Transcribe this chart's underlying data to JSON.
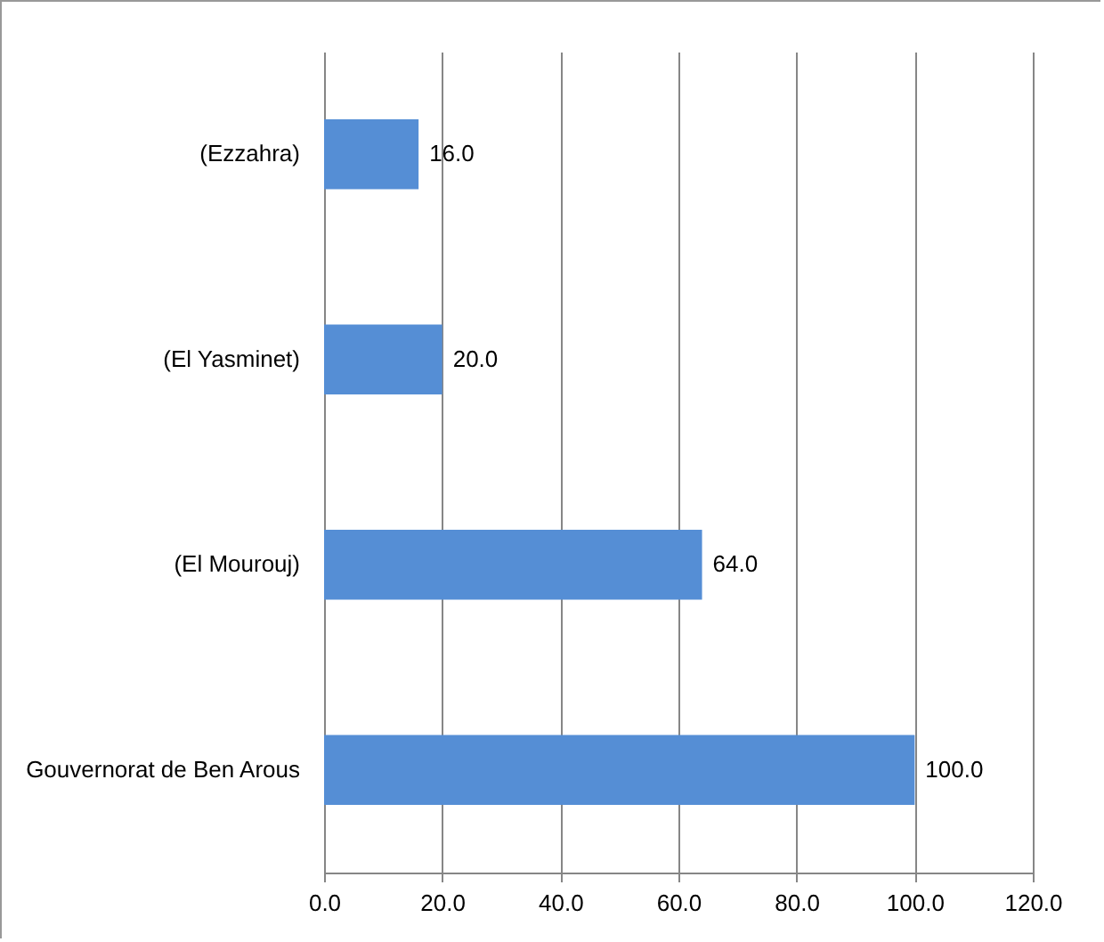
{
  "chart_data": {
    "type": "bar",
    "orientation": "horizontal",
    "categories": [
      "(Ezzahra)",
      "(El Yasminet)",
      "(El Mourouj)",
      "Gouvernorat de Ben Arous"
    ],
    "values": [
      16,
      20,
      64,
      100
    ],
    "color": "#558ed5",
    "value_labels": [
      "16.0",
      "20.0",
      "64.0",
      "100.0"
    ],
    "xlim": [
      0,
      120
    ],
    "xticks": [
      {
        "value": 0,
        "label": "0.0"
      },
      {
        "value": 20,
        "label": "20.0"
      },
      {
        "value": 40,
        "label": "40.0"
      },
      {
        "value": 60,
        "label": "60.0"
      },
      {
        "value": 80,
        "label": "80.0"
      },
      {
        "value": 100,
        "label": "100.0"
      },
      {
        "value": 120,
        "label": "120.0"
      }
    ],
    "grid": "x"
  }
}
